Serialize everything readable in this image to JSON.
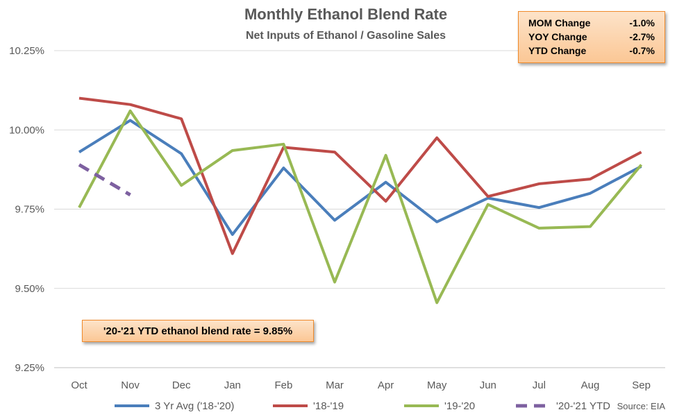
{
  "chart_data": {
    "type": "line",
    "title": "Monthly Ethanol Blend Rate",
    "subtitle": "Net Inputs of Ethanol / Gasoline Sales",
    "categories": [
      "Oct",
      "Nov",
      "Dec",
      "Jan",
      "Feb",
      "Mar",
      "Apr",
      "May",
      "Jun",
      "Jul",
      "Aug",
      "Sep"
    ],
    "y_ticks": [
      "9.25%",
      "9.50%",
      "9.75%",
      "10.00%",
      "10.25%"
    ],
    "ylim": [
      9.25,
      10.25
    ],
    "grid": true,
    "legend_position": "bottom",
    "series": [
      {
        "name": "3 Yr Avg ('18-'20)",
        "color": "#4a7ebb",
        "dashed": false,
        "values": [
          9.93,
          10.03,
          9.925,
          9.67,
          9.88,
          9.715,
          9.835,
          9.71,
          9.785,
          9.755,
          9.8,
          9.885
        ]
      },
      {
        "name": "'18-'19",
        "color": "#be4b48",
        "dashed": false,
        "values": [
          10.1,
          10.08,
          10.035,
          9.61,
          9.945,
          9.93,
          9.775,
          9.975,
          9.79,
          9.83,
          9.845,
          9.93
        ]
      },
      {
        "name": "'19-'20",
        "color": "#98b954",
        "dashed": false,
        "values": [
          9.755,
          10.06,
          9.825,
          9.935,
          9.955,
          9.52,
          9.92,
          9.455,
          9.765,
          9.69,
          9.695,
          9.89
        ]
      },
      {
        "name": "'20-'21 YTD",
        "color": "#7d60a0",
        "dashed": true,
        "values": [
          9.89,
          9.795,
          null,
          null,
          null,
          null,
          null,
          null,
          null,
          null,
          null,
          null
        ]
      }
    ]
  },
  "stats": [
    {
      "label": "MOM Change",
      "value": "-1.0%"
    },
    {
      "label": "YOY Change",
      "value": "-2.7%"
    },
    {
      "label": "YTD Change",
      "value": "-0.7%"
    }
  ],
  "note": "'20-'21 YTD ethanol blend rate = 9.85%",
  "source": "Source: EIA"
}
